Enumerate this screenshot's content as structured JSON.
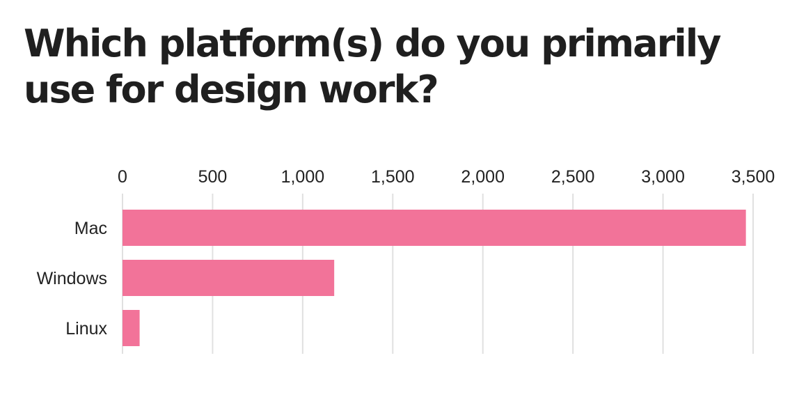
{
  "chart_data": {
    "type": "bar",
    "orientation": "horizontal",
    "title": "Which platform(s) do you primarily use for design work?",
    "categories": [
      "Mac",
      "Windows",
      "Linux"
    ],
    "values": [
      3460,
      1175,
      95
    ],
    "xlim": [
      0,
      3500
    ],
    "x_ticks": [
      0,
      500,
      1000,
      1500,
      2000,
      2500,
      3000,
      3500
    ],
    "x_tick_labels": [
      "0",
      "500",
      "1,000",
      "1,500",
      "2,000",
      "2,500",
      "3,000",
      "3,500"
    ],
    "axis_position": "top",
    "grid": true,
    "bar_color": "#f27399",
    "grid_color": "#e0e0e0"
  }
}
